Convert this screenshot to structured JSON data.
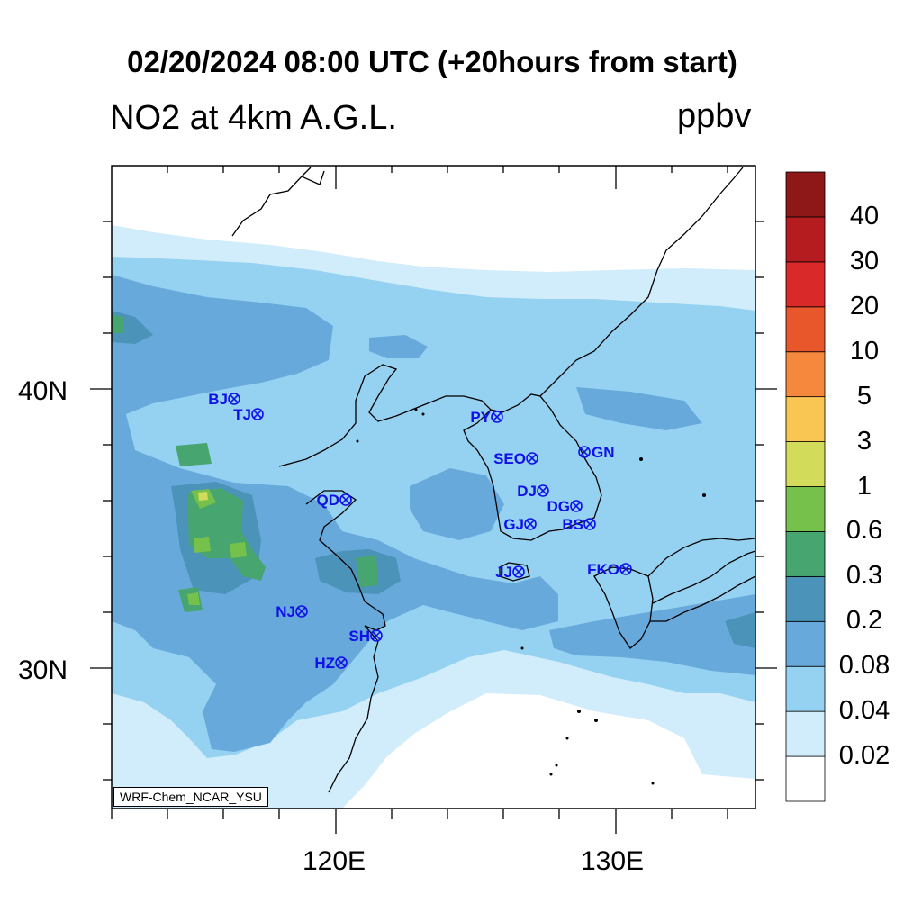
{
  "title": "02/20/2024 08:00 UTC (+20hours from start)",
  "subtitle_left": "NO2 at 4km A.G.L.",
  "subtitle_right": "ppbv",
  "lat_labels": [
    "40N",
    "30N"
  ],
  "lon_labels": [
    "120E",
    "130E"
  ],
  "credit": "WRF-Chem_NCAR_YSU",
  "colorbar": {
    "colors": [
      "#ffffff",
      "#d1ecfa",
      "#95d2f2",
      "#68a9db",
      "#4b93b8",
      "#47a56f",
      "#75c14c",
      "#d2dc5a",
      "#f9c654",
      "#f5883c",
      "#e8562c",
      "#da2929",
      "#b51c20",
      "#8e1718"
    ],
    "labels": [
      "0.02",
      "0.04",
      "0.08",
      "0.2",
      "0.3",
      "0.6",
      "1",
      "3",
      "5",
      "10",
      "20",
      "30",
      "40"
    ]
  },
  "sites": [
    {
      "label": "BJ",
      "side": "left"
    },
    {
      "label": "TJ",
      "side": "left"
    },
    {
      "label": "PY",
      "side": "left"
    },
    {
      "label": "SEO",
      "side": "left"
    },
    {
      "label": "GN",
      "side": "right"
    },
    {
      "label": "QD",
      "side": "left"
    },
    {
      "label": "DJ",
      "side": "left"
    },
    {
      "label": "DG",
      "side": "left"
    },
    {
      "label": "GJ",
      "side": "left"
    },
    {
      "label": "BS",
      "side": "left"
    },
    {
      "label": "JJ",
      "side": "left"
    },
    {
      "label": "FKO",
      "side": "left"
    },
    {
      "label": "NJ",
      "side": "left"
    },
    {
      "label": "SH",
      "side": "left"
    },
    {
      "label": "HZ",
      "side": "left"
    }
  ]
}
